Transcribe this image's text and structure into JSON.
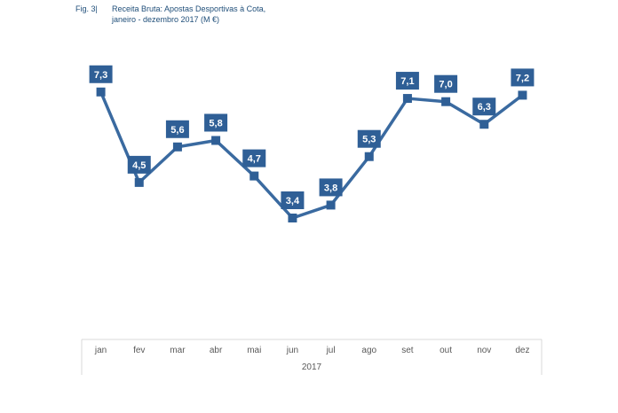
{
  "figure": {
    "label": "Fig. 3|",
    "title_line1": "Receita Bruta: Apostas Desportivas à Cota,",
    "title_line2": "janeiro - dezembro 2017 (M €)"
  },
  "colors": {
    "line": "#3a6aa0",
    "marker": "#2f5f96",
    "label_bg": "#2f5f96",
    "axis": "#d9d9d9",
    "title": "#1f4e79"
  },
  "chart_data": {
    "type": "line",
    "title": "Receita Bruta: Apostas Desportivas à Cota, janeiro - dezembro 2017 (M €)",
    "categories": [
      "jan",
      "fev",
      "mar",
      "abr",
      "mai",
      "jun",
      "jul",
      "ago",
      "set",
      "out",
      "nov",
      "dez"
    ],
    "values": [
      7.3,
      4.5,
      5.6,
      5.8,
      4.7,
      3.4,
      3.8,
      5.3,
      7.1,
      7.0,
      6.3,
      7.2
    ],
    "data_labels": [
      "7,3",
      "4,5",
      "5,6",
      "5,8",
      "4,7",
      "3,4",
      "3,8",
      "5,3",
      "7,1",
      "7,0",
      "6,3",
      "7,2"
    ],
    "xlabel": "2017",
    "ylabel": "",
    "ylim": [
      0,
      8.5
    ],
    "grid": false,
    "legend": "none"
  }
}
